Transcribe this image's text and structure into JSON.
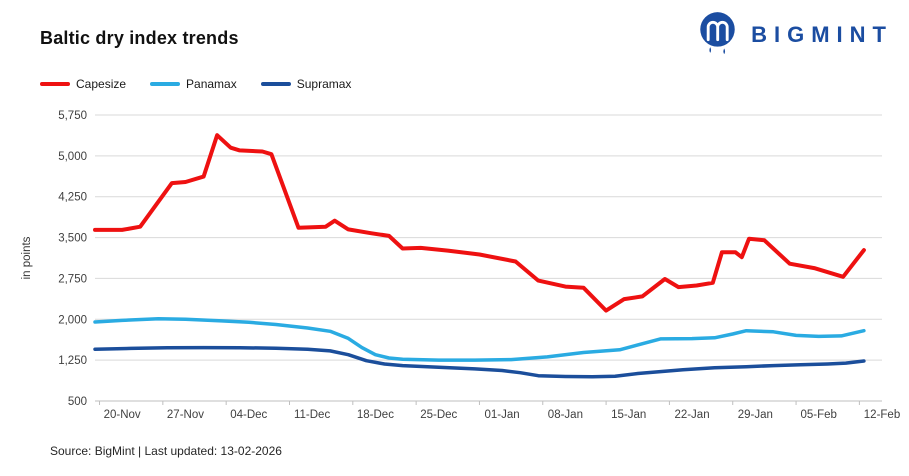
{
  "header": {
    "title": "Baltic dry index trends",
    "brand_name": "BIGMINT",
    "brand_color": "#1b4da1"
  },
  "footer": {
    "source": "Source: BigMint | Last updated: 13-02-2026"
  },
  "chart_data": {
    "type": "line",
    "title": "Baltic dry index trends",
    "xlabel": "",
    "ylabel": "in points",
    "ylim": [
      500,
      5750
    ],
    "ytick_values": [
      500,
      1250,
      2000,
      2750,
      3500,
      4250,
      5000,
      5750
    ],
    "grid": true,
    "legend_position": "top-left",
    "x_unit": "days from 17-Nov",
    "x_range": [
      0,
      87
    ],
    "xtick_days": [
      3,
      10,
      17,
      24,
      31,
      38,
      45,
      52,
      59,
      66,
      73,
      80,
      87
    ],
    "xtick_labels": [
      "20-Nov",
      "27-Nov",
      "04-Dec",
      "11-Dec",
      "18-Dec",
      "25-Dec",
      "01-Jan",
      "08-Jan",
      "15-Jan",
      "22-Jan",
      "29-Jan",
      "05-Feb",
      "12-Feb"
    ],
    "series": [
      {
        "name": "Capesize",
        "color": "#ee1111",
        "stroke_width": 4,
        "points": [
          [
            0,
            3640
          ],
          [
            3,
            3640
          ],
          [
            5,
            3700
          ],
          [
            8.5,
            4500
          ],
          [
            10,
            4520
          ],
          [
            12,
            4620
          ],
          [
            13.5,
            5380
          ],
          [
            15,
            5150
          ],
          [
            16,
            5100
          ],
          [
            18.5,
            5080
          ],
          [
            19.5,
            5030
          ],
          [
            22.5,
            3680
          ],
          [
            25.5,
            3700
          ],
          [
            26.5,
            3810
          ],
          [
            28,
            3650
          ],
          [
            30.5,
            3580
          ],
          [
            32.5,
            3530
          ],
          [
            34,
            3300
          ],
          [
            36,
            3310
          ],
          [
            39,
            3260
          ],
          [
            42.5,
            3190
          ],
          [
            46.5,
            3060
          ],
          [
            49,
            2710
          ],
          [
            52,
            2600
          ],
          [
            54,
            2580
          ],
          [
            56.5,
            2160
          ],
          [
            58.5,
            2370
          ],
          [
            60.5,
            2420
          ],
          [
            63,
            2740
          ],
          [
            64.5,
            2590
          ],
          [
            66.5,
            2620
          ],
          [
            68.3,
            2670
          ],
          [
            69.3,
            3230
          ],
          [
            70.8,
            3230
          ],
          [
            71.5,
            3140
          ],
          [
            72.3,
            3480
          ],
          [
            74,
            3450
          ],
          [
            76.8,
            3020
          ],
          [
            79.5,
            2940
          ],
          [
            82.7,
            2780
          ],
          [
            85,
            3270
          ]
        ]
      },
      {
        "name": "Panamax",
        "color": "#2aabe2",
        "stroke_width": 3.5,
        "points": [
          [
            0,
            1950
          ],
          [
            3,
            1980
          ],
          [
            7,
            2010
          ],
          [
            10,
            2000
          ],
          [
            14,
            1970
          ],
          [
            17,
            1945
          ],
          [
            20,
            1905
          ],
          [
            23.5,
            1840
          ],
          [
            26,
            1780
          ],
          [
            28,
            1650
          ],
          [
            29.5,
            1480
          ],
          [
            31,
            1350
          ],
          [
            32.5,
            1290
          ],
          [
            34,
            1265
          ],
          [
            38,
            1250
          ],
          [
            42,
            1250
          ],
          [
            46,
            1260
          ],
          [
            48,
            1285
          ],
          [
            50,
            1310
          ],
          [
            54,
            1390
          ],
          [
            58,
            1440
          ],
          [
            62.5,
            1640
          ],
          [
            66,
            1645
          ],
          [
            68.5,
            1660
          ],
          [
            70.5,
            1730
          ],
          [
            72,
            1790
          ],
          [
            75,
            1770
          ],
          [
            77.5,
            1705
          ],
          [
            80,
            1685
          ],
          [
            82.5,
            1695
          ],
          [
            85,
            1790
          ]
        ]
      },
      {
        "name": "Supramax",
        "color": "#1b4e9b",
        "stroke_width": 3.5,
        "points": [
          [
            0,
            1450
          ],
          [
            4,
            1465
          ],
          [
            8,
            1478
          ],
          [
            12,
            1480
          ],
          [
            16,
            1478
          ],
          [
            20,
            1468
          ],
          [
            23.5,
            1450
          ],
          [
            26,
            1420
          ],
          [
            28,
            1350
          ],
          [
            30,
            1240
          ],
          [
            32,
            1180
          ],
          [
            34,
            1150
          ],
          [
            38,
            1120
          ],
          [
            42,
            1090
          ],
          [
            45,
            1060
          ],
          [
            47,
            1020
          ],
          [
            49,
            965
          ],
          [
            52,
            950
          ],
          [
            55,
            945
          ],
          [
            57.5,
            955
          ],
          [
            60,
            1005
          ],
          [
            62.5,
            1040
          ],
          [
            65,
            1075
          ],
          [
            68.5,
            1110
          ],
          [
            72,
            1130
          ],
          [
            75,
            1150
          ],
          [
            78,
            1165
          ],
          [
            81,
            1180
          ],
          [
            83,
            1195
          ],
          [
            85,
            1235
          ]
        ]
      }
    ],
    "style": {
      "grid_color": "#d9d9d9",
      "axis_color": "#bfbfbf",
      "tick_label_color": "#404040"
    }
  }
}
